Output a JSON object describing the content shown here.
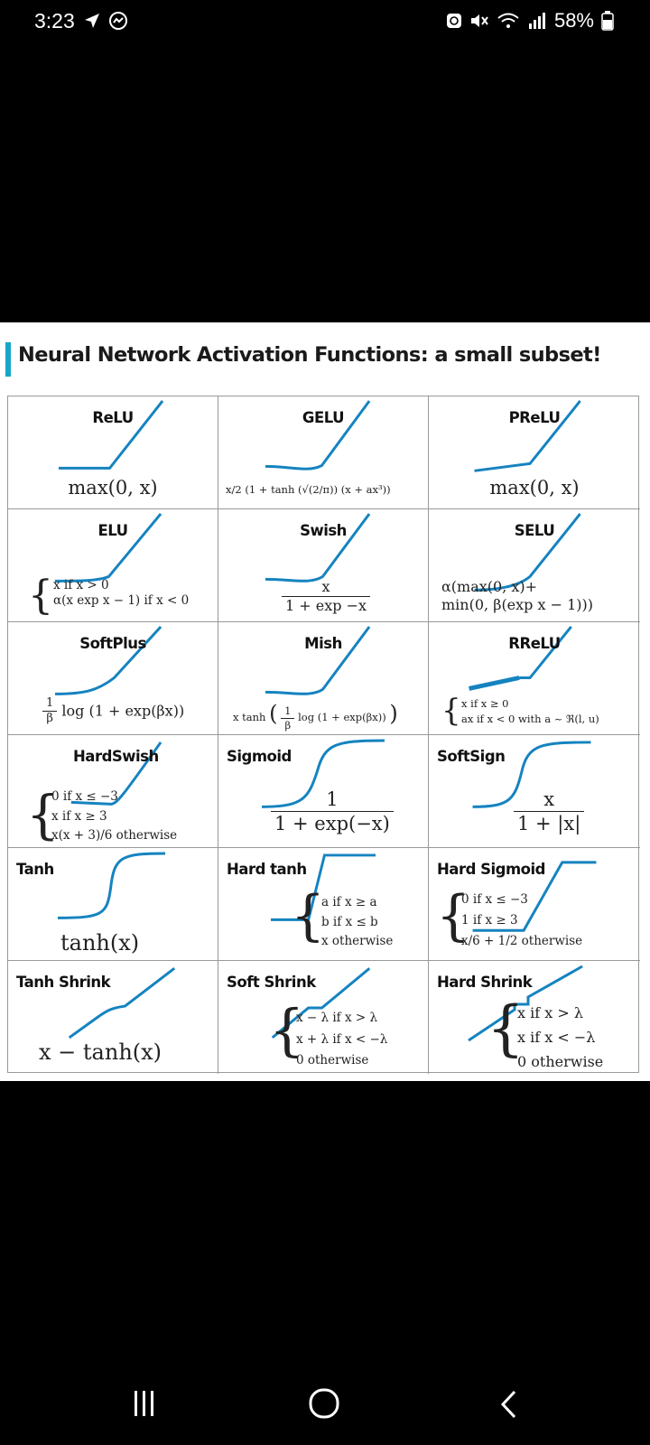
{
  "status": {
    "time": "3:23",
    "battery": "58%"
  },
  "title": "Neural Network Activation Functions: a small subset!",
  "cells": [
    {
      "name": "ReLU",
      "formula": [
        "max(0, x)"
      ]
    },
    {
      "name": "GELU",
      "formula": [
        "x/2 (1 + tanh (√(2/π)) (x + ax³))"
      ]
    },
    {
      "name": "PReLU",
      "formula": [
        "max(0, x)"
      ]
    },
    {
      "name": "ELU",
      "formula": [
        "x if x > 0",
        "α(x exp x − 1) if x < 0"
      ]
    },
    {
      "name": "Swish",
      "formula": [
        "x",
        "1 + exp −x"
      ]
    },
    {
      "name": "SELU",
      "formula": [
        "α(max(0, x)+",
        "min(0, β(exp x − 1)))"
      ]
    },
    {
      "name": "SoftPlus",
      "formula": [
        "1",
        "β",
        "log (1 + exp(βx))"
      ]
    },
    {
      "name": "Mish",
      "formula": [
        "x tanh",
        "1",
        "β",
        "log (1 + exp(βx))"
      ]
    },
    {
      "name": "RReLU",
      "formula": [
        "x if x ≥ 0",
        "ax if x < 0 with a ~ ℜ(l, u)"
      ]
    },
    {
      "name": "HardSwish",
      "formula": [
        "0 if x ≤ −3",
        "x if x ≥ 3",
        "x(x + 3)/6 otherwise"
      ]
    },
    {
      "name": "Sigmoid",
      "formula": [
        "1",
        "1 + exp(−x)"
      ]
    },
    {
      "name": "SoftSign",
      "formula": [
        "x",
        "1 + |x|"
      ]
    },
    {
      "name": "Tanh",
      "formula": [
        "tanh(x)"
      ]
    },
    {
      "name": "Hard tanh",
      "formula": [
        "a if x ≥ a",
        "b if x ≤ b",
        "x otherwise"
      ]
    },
    {
      "name": "Hard Sigmoid",
      "formula": [
        "0 if x ≤ −3",
        "1 if x ≥ 3",
        "x/6 + 1/2 otherwise"
      ]
    },
    {
      "name": "Tanh Shrink",
      "formula": [
        "x − tanh(x)"
      ]
    },
    {
      "name": "Soft Shrink",
      "formula": [
        "x − λ if x > λ",
        "x + λ if x < −λ",
        "0 otherwise"
      ]
    },
    {
      "name": "Hard Shrink",
      "formula": [
        "x if x > λ",
        "x if x < −λ",
        "0 otherwise"
      ]
    }
  ],
  "icons": {
    "navigation": "navigation-arrow-icon",
    "messenger": "messenger-icon",
    "recycle": "recycle-icon",
    "mute": "mute-icon",
    "wifi": "wifi-icon",
    "signal": "signal-icon",
    "battery": "battery-icon",
    "recents": "recents-icon",
    "home": "home-icon",
    "back": "back-icon"
  },
  "colors": {
    "curve": "#1583c0",
    "accent": "#17a6c8"
  }
}
